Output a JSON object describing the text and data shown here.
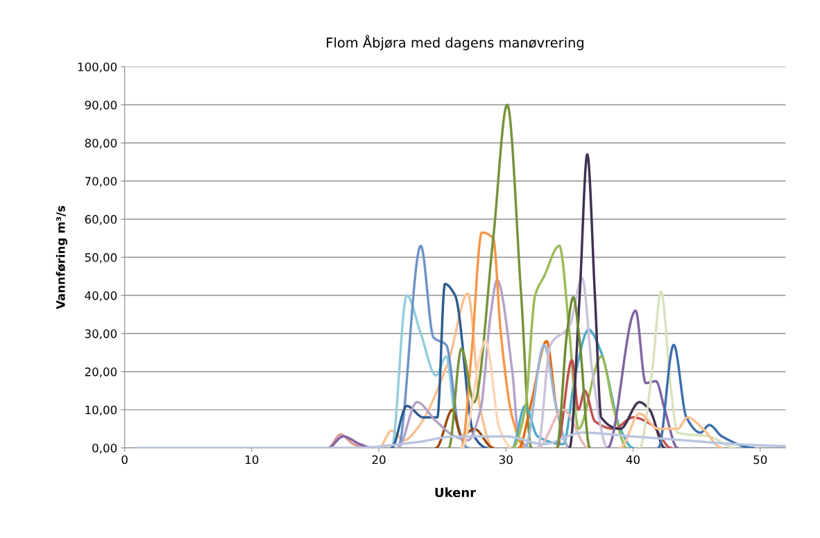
{
  "chart_data": {
    "type": "line",
    "title": "Flom Åbjøra med dagens manøvrering",
    "xlabel": "Ukenr",
    "ylabel": "Vannføring m³/s",
    "xlim": [
      0,
      52
    ],
    "xticks": [
      0,
      10,
      20,
      30,
      40,
      50
    ],
    "ylim": [
      0,
      100
    ],
    "yticks": [
      {
        "value": 0,
        "label": "0,00"
      },
      {
        "value": 10,
        "label": "10,00"
      },
      {
        "value": 20,
        "label": "20,00"
      },
      {
        "value": 30,
        "label": "30,00"
      },
      {
        "value": 40,
        "label": "40,00"
      },
      {
        "value": 50,
        "label": "50,00"
      },
      {
        "value": 60,
        "label": "60,00"
      },
      {
        "value": 70,
        "label": "70,00"
      },
      {
        "value": 80,
        "label": "80,00"
      },
      {
        "value": 90,
        "label": "90,00"
      },
      {
        "value": 100,
        "label": "100,00"
      }
    ],
    "grid": "y",
    "legend": false,
    "marker": "none",
    "line_style": "solid",
    "series": [
      {
        "color": "#d99694",
        "x": [
          16,
          17,
          18,
          19
        ],
        "values": [
          0,
          3.5,
          1,
          0
        ]
      },
      {
        "color": "#8064a2",
        "x": [
          16,
          17.2,
          18.5,
          19.5
        ],
        "values": [
          0,
          3,
          1,
          0
        ]
      },
      {
        "color": "#fac090",
        "x": [
          20,
          21,
          22,
          23,
          25.5,
          27,
          28,
          29
        ],
        "values": [
          0,
          4.5,
          2,
          5,
          23,
          40.5,
          10,
          0
        ]
      },
      {
        "color": "#93cddd",
        "x": [
          21,
          22.2,
          23.3,
          24.5,
          25.3,
          26,
          27
        ],
        "values": [
          0,
          40,
          30,
          19,
          24,
          8,
          0
        ]
      },
      {
        "color": "#6f93c8",
        "x": [
          21.5,
          23.3,
          24.3,
          25.3,
          26.3,
          27
        ],
        "values": [
          0,
          53,
          29,
          27,
          5,
          0
        ]
      },
      {
        "color": "#2c5d91",
        "x": [
          21,
          22.2,
          23.5,
          24.6,
          25.2,
          26,
          27.5,
          28.5
        ],
        "values": [
          0,
          11,
          8,
          8,
          43,
          40,
          3,
          0
        ]
      },
      {
        "color": "#984807",
        "x": [
          24.5,
          25.8,
          26.5,
          27.5,
          29
        ],
        "values": [
          0,
          10,
          3,
          5,
          0
        ]
      },
      {
        "color": "#b3a2c7",
        "x": [
          21.5,
          23,
          24.5,
          26,
          27,
          28,
          28.8,
          29.3,
          30.5,
          31,
          32
        ],
        "values": [
          0,
          12,
          7,
          3,
          2,
          10,
          35,
          44,
          20,
          3,
          0
        ]
      },
      {
        "color": "#f79646",
        "x": [
          26.5,
          27.3,
          28.1,
          29,
          29.6,
          30.5,
          31.5
        ],
        "values": [
          0,
          25,
          56.5,
          55,
          30,
          8,
          0
        ]
      },
      {
        "color": "#77933c",
        "x": [
          25.5,
          26.5,
          27.5,
          29,
          30.1,
          31.2,
          32
        ],
        "values": [
          0,
          26,
          12,
          55,
          90,
          40,
          0
        ]
      },
      {
        "color": "#fcd5b5",
        "x": [
          26.5,
          28.4,
          29.5,
          30.5
        ],
        "values": [
          0,
          28,
          5,
          0
        ]
      },
      {
        "color": "#e46c0a",
        "x": [
          31,
          32,
          33.2,
          34,
          35
        ],
        "values": [
          0,
          12,
          28,
          10,
          0
        ]
      },
      {
        "color": "#4bacc6",
        "x": [
          30.5,
          31.5,
          32.5,
          34.5,
          35.5,
          36.5,
          37.5,
          39,
          40
        ],
        "values": [
          0,
          11,
          3,
          1,
          20,
          31,
          25,
          5,
          0
        ]
      },
      {
        "color": "#9bbb59",
        "x": [
          30.5,
          31.5,
          32.3,
          33,
          34.2,
          35,
          35.7,
          37.5,
          38.5,
          39.5
        ],
        "values": [
          0,
          10,
          40,
          45,
          53,
          30,
          5,
          24,
          10,
          0
        ]
      },
      {
        "color": "#9bb7d8",
        "x": [
          31.5,
          33,
          34,
          35
        ],
        "values": [
          0,
          27,
          10,
          0
        ]
      },
      {
        "color": "#c0504d",
        "x": [
          34,
          35.2,
          35.7,
          36.2,
          37,
          38.5,
          40,
          41.5,
          43
        ],
        "values": [
          0,
          23,
          10,
          15,
          7,
          5,
          8,
          6,
          0
        ]
      },
      {
        "color": "#e6b9b8",
        "x": [
          32.5,
          34.5,
          36.5
        ],
        "values": [
          0,
          10,
          0
        ]
      },
      {
        "color": "#ccc1da",
        "x": [
          32.5,
          33.5,
          35,
          36,
          36.8,
          38
        ],
        "values": [
          0,
          27,
          32,
          44.5,
          20,
          0
        ]
      },
      {
        "color": "#403152",
        "x": [
          35,
          35.8,
          36.4,
          37,
          37.5,
          39,
          40.5,
          41.3,
          42.5
        ],
        "values": [
          0,
          40,
          77,
          40,
          8,
          5,
          12,
          10,
          0
        ]
      },
      {
        "color": "#8064a2",
        "x": [
          38,
          40.2,
          41,
          41.8,
          42.5,
          43.5
        ],
        "values": [
          0,
          36,
          17,
          17.5,
          10,
          0
        ]
      },
      {
        "color": "#d7e4bd",
        "x": [
          40.5,
          41.5,
          42.2,
          43,
          43.5,
          46,
          48
        ],
        "values": [
          0,
          20,
          41,
          15,
          4,
          3,
          0
        ]
      },
      {
        "color": "#3d6eb0",
        "x": [
          42,
          43.2,
          44.2,
          45.3,
          46,
          47,
          49.5
        ],
        "values": [
          0,
          27,
          8,
          4,
          6,
          3,
          0
        ]
      },
      {
        "color": "#fac090",
        "x": [
          39,
          40.5,
          42,
          43.5,
          44.3,
          45.5,
          47
        ],
        "values": [
          0,
          9,
          5,
          5,
          8,
          5,
          0
        ]
      },
      {
        "color": "#b9c5e0",
        "x": [
          1,
          18,
          23,
          26,
          30,
          33,
          36,
          40,
          44,
          48,
          52
        ],
        "values": [
          0,
          0,
          1.5,
          3,
          3,
          1,
          4,
          3,
          2,
          1,
          0.5
        ]
      },
      {
        "color": "#6e8b34",
        "x": [
          34,
          34.8,
          35.3,
          35.8,
          36.6
        ],
        "values": [
          0,
          30,
          39.5,
          28,
          0
        ]
      }
    ]
  }
}
